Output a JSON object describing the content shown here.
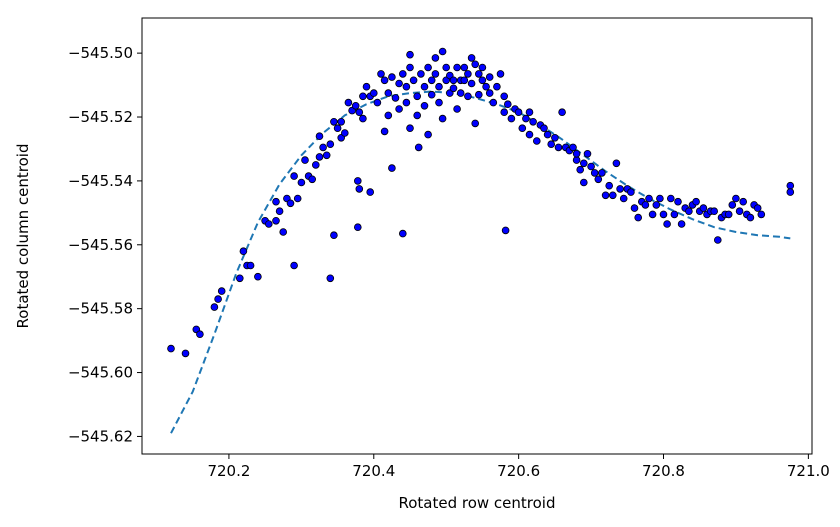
{
  "chart_data": {
    "type": "scatter",
    "xlabel": "Rotated row centroid",
    "ylabel": "Rotated column centroid",
    "xlim": [
      720.08,
      721.005
    ],
    "ylim": [
      -545.6255,
      -545.489
    ],
    "x_ticks": [
      720.2,
      720.4,
      720.6,
      720.8,
      721.0
    ],
    "x_tick_labels": [
      "720.2",
      "720.4",
      "720.6",
      "720.8",
      "721.0"
    ],
    "y_ticks": [
      -545.5,
      -545.52,
      -545.54,
      -545.56,
      -545.58,
      -545.6,
      -545.62
    ],
    "y_tick_labels": [
      "−545.50",
      "−545.52",
      "−545.54",
      "−545.56",
      "−545.58",
      "−545.60",
      "−545.62"
    ],
    "grid": false,
    "colors": {
      "points": "#0000ff",
      "point_edge": "#000000",
      "fit": "#1f77b4"
    },
    "series": [
      {
        "kind": "scatter",
        "points": [
          [
            720.12,
            -545.5925
          ],
          [
            720.14,
            -545.594
          ],
          [
            720.155,
            -545.5865
          ],
          [
            720.16,
            -545.588
          ],
          [
            720.18,
            -545.5795
          ],
          [
            720.185,
            -545.577
          ],
          [
            720.19,
            -545.5745
          ],
          [
            720.215,
            -545.5705
          ],
          [
            720.22,
            -545.562
          ],
          [
            720.225,
            -545.5665
          ],
          [
            720.23,
            -545.5665
          ],
          [
            720.24,
            -545.57
          ],
          [
            720.25,
            -545.5525
          ],
          [
            720.255,
            -545.5535
          ],
          [
            720.265,
            -545.5465
          ],
          [
            720.265,
            -545.5525
          ],
          [
            720.27,
            -545.5495
          ],
          [
            720.275,
            -545.556
          ],
          [
            720.28,
            -545.5455
          ],
          [
            720.285,
            -545.547
          ],
          [
            720.29,
            -545.5385
          ],
          [
            720.29,
            -545.5665
          ],
          [
            720.295,
            -545.5455
          ],
          [
            720.3,
            -545.5405
          ],
          [
            720.305,
            -545.5335
          ],
          [
            720.31,
            -545.5385
          ],
          [
            720.315,
            -545.5395
          ],
          [
            720.32,
            -545.535
          ],
          [
            720.325,
            -545.526
          ],
          [
            720.325,
            -545.5325
          ],
          [
            720.33,
            -545.5295
          ],
          [
            720.335,
            -545.532
          ],
          [
            720.34,
            -545.5285
          ],
          [
            720.345,
            -545.5215
          ],
          [
            720.34,
            -545.5705
          ],
          [
            720.345,
            -545.557
          ],
          [
            720.35,
            -545.5235
          ],
          [
            720.355,
            -545.5215
          ],
          [
            720.355,
            -545.5265
          ],
          [
            720.36,
            -545.525
          ],
          [
            720.365,
            -545.5155
          ],
          [
            720.37,
            -545.518
          ],
          [
            720.375,
            -545.5165
          ],
          [
            720.38,
            -545.5185
          ],
          [
            720.378,
            -545.54
          ],
          [
            720.38,
            -545.5425
          ],
          [
            720.378,
            -545.5545
          ],
          [
            720.385,
            -545.5135
          ],
          [
            720.385,
            -545.5205
          ],
          [
            720.39,
            -545.5105
          ],
          [
            720.395,
            -545.5135
          ],
          [
            720.395,
            -545.5435
          ],
          [
            720.4,
            -545.5125
          ],
          [
            720.405,
            -545.5155
          ],
          [
            720.41,
            -545.5065
          ],
          [
            720.415,
            -545.5245
          ],
          [
            720.415,
            -545.5085
          ],
          [
            720.42,
            -545.5125
          ],
          [
            720.42,
            -545.5195
          ],
          [
            720.425,
            -545.5075
          ],
          [
            720.425,
            -545.536
          ],
          [
            720.43,
            -545.514
          ],
          [
            720.435,
            -545.5095
          ],
          [
            720.435,
            -545.5175
          ],
          [
            720.44,
            -545.5565
          ],
          [
            720.44,
            -545.5065
          ],
          [
            720.445,
            -545.5105
          ],
          [
            720.445,
            -545.5155
          ],
          [
            720.45,
            -545.5045
          ],
          [
            720.45,
            -545.5005
          ],
          [
            720.45,
            -545.5235
          ],
          [
            720.455,
            -545.5085
          ],
          [
            720.46,
            -545.5135
          ],
          [
            720.46,
            -545.5195
          ],
          [
            720.462,
            -545.5295
          ],
          [
            720.465,
            -545.5065
          ],
          [
            720.47,
            -545.5105
          ],
          [
            720.47,
            -545.5165
          ],
          [
            720.475,
            -545.5045
          ],
          [
            720.475,
            -545.5255
          ],
          [
            720.48,
            -545.5085
          ],
          [
            720.48,
            -545.513
          ],
          [
            720.485,
            -545.5015
          ],
          [
            720.485,
            -545.5065
          ],
          [
            720.49,
            -545.5105
          ],
          [
            720.49,
            -545.5155
          ],
          [
            720.495,
            -545.4995
          ],
          [
            720.495,
            -545.5205
          ],
          [
            720.5,
            -545.5085
          ],
          [
            720.5,
            -545.5045
          ],
          [
            720.505,
            -545.5125
          ],
          [
            720.505,
            -545.507
          ],
          [
            720.51,
            -545.5085
          ],
          [
            720.51,
            -545.511
          ],
          [
            720.515,
            -545.5045
          ],
          [
            720.515,
            -545.5175
          ],
          [
            720.52,
            -545.5085
          ],
          [
            720.52,
            -545.5125
          ],
          [
            720.525,
            -545.5045
          ],
          [
            720.525,
            -545.5085
          ],
          [
            720.53,
            -545.5065
          ],
          [
            720.53,
            -545.5135
          ],
          [
            720.535,
            -545.5015
          ],
          [
            720.535,
            -545.5095
          ],
          [
            720.54,
            -545.5035
          ],
          [
            720.54,
            -545.522
          ],
          [
            720.545,
            -545.5065
          ],
          [
            720.545,
            -545.513
          ],
          [
            720.55,
            -545.5085
          ],
          [
            720.55,
            -545.5045
          ],
          [
            720.555,
            -545.5105
          ],
          [
            720.56,
            -545.5075
          ],
          [
            720.56,
            -545.5125
          ],
          [
            720.565,
            -545.5155
          ],
          [
            720.57,
            -545.5105
          ],
          [
            720.575,
            -545.5065
          ],
          [
            720.58,
            -545.5135
          ],
          [
            720.58,
            -545.5185
          ],
          [
            720.582,
            -545.5555
          ],
          [
            720.585,
            -545.516
          ],
          [
            720.59,
            -545.5205
          ],
          [
            720.595,
            -545.5175
          ],
          [
            720.6,
            -545.5185
          ],
          [
            720.605,
            -545.5235
          ],
          [
            720.61,
            -545.5205
          ],
          [
            720.615,
            -545.5255
          ],
          [
            720.615,
            -545.5185
          ],
          [
            720.62,
            -545.5215
          ],
          [
            720.625,
            -545.5275
          ],
          [
            720.63,
            -545.5225
          ],
          [
            720.635,
            -545.5235
          ],
          [
            720.64,
            -545.5255
          ],
          [
            720.645,
            -545.5285
          ],
          [
            720.65,
            -545.5265
          ],
          [
            720.655,
            -545.5295
          ],
          [
            720.66,
            -545.5185
          ],
          [
            720.665,
            -545.5295
          ],
          [
            720.67,
            -545.5305
          ],
          [
            720.675,
            -545.5295
          ],
          [
            720.68,
            -545.5335
          ],
          [
            720.68,
            -545.5315
          ],
          [
            720.685,
            -545.5365
          ],
          [
            720.69,
            -545.5345
          ],
          [
            720.69,
            -545.5405
          ],
          [
            720.695,
            -545.5315
          ],
          [
            720.7,
            -545.5355
          ],
          [
            720.705,
            -545.5375
          ],
          [
            720.71,
            -545.5395
          ],
          [
            720.715,
            -545.5375
          ],
          [
            720.72,
            -545.5445
          ],
          [
            720.725,
            -545.5415
          ],
          [
            720.73,
            -545.5445
          ],
          [
            720.735,
            -545.5345
          ],
          [
            720.74,
            -545.5425
          ],
          [
            720.745,
            -545.5455
          ],
          [
            720.75,
            -545.5425
          ],
          [
            720.755,
            -545.5435
          ],
          [
            720.76,
            -545.5485
          ],
          [
            720.765,
            -545.5515
          ],
          [
            720.77,
            -545.5465
          ],
          [
            720.775,
            -545.5475
          ],
          [
            720.78,
            -545.5455
          ],
          [
            720.785,
            -545.5505
          ],
          [
            720.79,
            -545.5475
          ],
          [
            720.795,
            -545.5455
          ],
          [
            720.8,
            -545.5505
          ],
          [
            720.805,
            -545.5535
          ],
          [
            720.81,
            -545.5455
          ],
          [
            720.815,
            -545.5505
          ],
          [
            720.82,
            -545.5465
          ],
          [
            720.825,
            -545.5535
          ],
          [
            720.83,
            -545.5485
          ],
          [
            720.835,
            -545.5495
          ],
          [
            720.84,
            -545.5475
          ],
          [
            720.845,
            -545.5465
          ],
          [
            720.85,
            -545.5495
          ],
          [
            720.855,
            -545.5485
          ],
          [
            720.86,
            -545.5505
          ],
          [
            720.865,
            -545.5495
          ],
          [
            720.87,
            -545.5495
          ],
          [
            720.875,
            -545.5585
          ],
          [
            720.88,
            -545.5515
          ],
          [
            720.885,
            -545.5505
          ],
          [
            720.89,
            -545.5505
          ],
          [
            720.895,
            -545.5475
          ],
          [
            720.9,
            -545.5455
          ],
          [
            720.905,
            -545.5495
          ],
          [
            720.91,
            -545.5465
          ],
          [
            720.915,
            -545.5505
          ],
          [
            720.92,
            -545.5515
          ],
          [
            720.925,
            -545.5475
          ],
          [
            720.93,
            -545.5485
          ],
          [
            720.935,
            -545.5505
          ],
          [
            720.975,
            -545.5415
          ],
          [
            720.975,
            -545.5435
          ]
        ]
      },
      {
        "kind": "fit-line",
        "style": "dashed",
        "points": [
          [
            720.12,
            -545.619
          ],
          [
            720.15,
            -545.606
          ],
          [
            720.18,
            -545.588
          ],
          [
            720.21,
            -545.569
          ],
          [
            720.24,
            -545.553
          ],
          [
            720.27,
            -545.541
          ],
          [
            720.3,
            -545.532
          ],
          [
            720.33,
            -545.525
          ],
          [
            720.36,
            -545.5195
          ],
          [
            720.39,
            -545.516
          ],
          [
            720.42,
            -545.5135
          ],
          [
            720.45,
            -545.5125
          ],
          [
            720.48,
            -545.512
          ],
          [
            720.51,
            -545.5125
          ],
          [
            720.54,
            -545.514
          ],
          [
            720.57,
            -545.516
          ],
          [
            720.6,
            -545.5185
          ],
          [
            720.63,
            -545.5225
          ],
          [
            720.66,
            -545.527
          ],
          [
            720.69,
            -545.532
          ],
          [
            720.72,
            -545.537
          ],
          [
            720.75,
            -545.5415
          ],
          [
            720.78,
            -545.5455
          ],
          [
            720.81,
            -545.549
          ],
          [
            720.84,
            -545.552
          ],
          [
            720.87,
            -545.5545
          ],
          [
            720.9,
            -545.556
          ],
          [
            720.93,
            -545.557
          ],
          [
            720.96,
            -545.5575
          ],
          [
            720.975,
            -545.558
          ]
        ]
      }
    ]
  }
}
